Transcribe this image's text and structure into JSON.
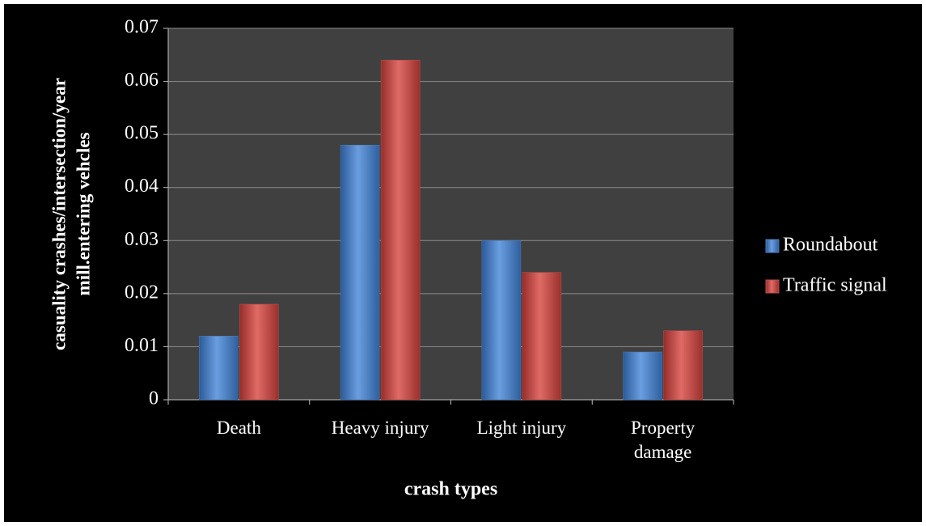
{
  "chart_data": {
    "type": "bar",
    "xlabel": "crash types",
    "ylabel": [
      "casuality crashes/intersection/year",
      "mill.entering  vehcles"
    ],
    "categories": [
      "Death",
      "Heavy injury",
      "Light injury",
      "Property damage"
    ],
    "series": [
      {
        "name": "Roundabout",
        "color": "#4a7ebb",
        "values": [
          0.012,
          0.048,
          0.03,
          0.009
        ]
      },
      {
        "name": "Traffic signal",
        "color": "#c0504d",
        "values": [
          0.018,
          0.064,
          0.024,
          0.013
        ]
      }
    ],
    "ylim": [
      0,
      0.07
    ],
    "yticks": [
      0,
      0.01,
      0.02,
      0.03,
      0.04,
      0.05,
      0.06,
      0.07
    ],
    "grid": true,
    "legend": "right"
  }
}
